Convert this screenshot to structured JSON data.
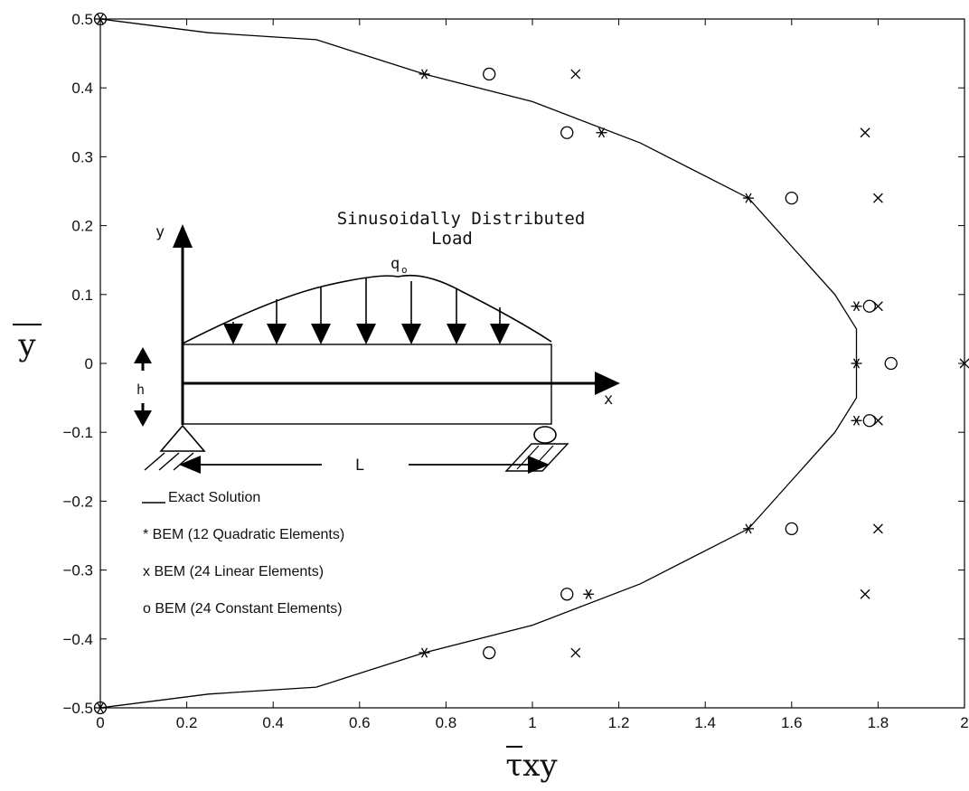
{
  "chart_data": {
    "type": "scatter",
    "xlabel": "τxy",
    "ylabel": "y",
    "xlim": [
      0,
      2
    ],
    "ylim": [
      -0.5,
      0.5
    ],
    "xticks": [
      "0",
      "0.2",
      "0.4",
      "0.6",
      "0.8",
      "1",
      "1.2",
      "1.4",
      "1.6",
      "1.8",
      "2"
    ],
    "yticks": [
      "0.5",
      "0.4",
      "0.3",
      "0.2",
      "0.1",
      "0",
      "−0.1",
      "−0.2",
      "−0.3",
      "−0.4",
      "−0.5"
    ],
    "grid": false,
    "series": [
      {
        "name": "Exact Solution",
        "marker": "line",
        "points": [
          [
            0,
            0.5
          ],
          [
            0.25,
            0.48
          ],
          [
            0.5,
            0.47
          ],
          [
            0.75,
            0.42
          ],
          [
            1.0,
            0.38
          ],
          [
            1.25,
            0.32
          ],
          [
            1.5,
            0.24
          ],
          [
            1.6,
            0.17
          ],
          [
            1.7,
            0.1
          ],
          [
            1.75,
            0.05
          ],
          [
            1.75,
            -0.05
          ],
          [
            1.7,
            -0.1
          ],
          [
            1.6,
            -0.17
          ],
          [
            1.5,
            -0.24
          ],
          [
            1.25,
            -0.32
          ],
          [
            1.0,
            -0.38
          ],
          [
            0.75,
            -0.42
          ],
          [
            0.5,
            -0.47
          ],
          [
            0.25,
            -0.48
          ],
          [
            0,
            -0.5
          ]
        ]
      },
      {
        "name": "BEM (12 Quadratic Elements)",
        "marker": "*",
        "points": [
          [
            0,
            0.5
          ],
          [
            0.75,
            0.42
          ],
          [
            1.16,
            0.335
          ],
          [
            1.5,
            0.24
          ],
          [
            1.75,
            0.083
          ],
          [
            1.75,
            0
          ],
          [
            1.75,
            -0.083
          ],
          [
            1.5,
            -0.24
          ],
          [
            1.13,
            -0.335
          ],
          [
            0.75,
            -0.42
          ],
          [
            0,
            -0.5
          ]
        ]
      },
      {
        "name": "BEM (24 Linear Elements)",
        "marker": "x",
        "points": [
          [
            1.1,
            0.42
          ],
          [
            1.77,
            0.335
          ],
          [
            1.8,
            0.24
          ],
          [
            1.8,
            0.083
          ],
          [
            2.0,
            0
          ],
          [
            1.8,
            -0.083
          ],
          [
            1.8,
            -0.24
          ],
          [
            1.77,
            -0.335
          ],
          [
            1.1,
            -0.42
          ]
        ]
      },
      {
        "name": "BEM (24 Constant Elements)",
        "marker": "o",
        "points": [
          [
            0,
            0.5
          ],
          [
            0.9,
            0.42
          ],
          [
            1.08,
            0.335
          ],
          [
            1.6,
            0.24
          ],
          [
            1.78,
            0.083
          ],
          [
            1.83,
            0
          ],
          [
            1.78,
            -0.083
          ],
          [
            1.6,
            -0.24
          ],
          [
            1.08,
            -0.335
          ],
          [
            0.9,
            -0.42
          ],
          [
            0,
            -0.5
          ]
        ]
      }
    ],
    "legend": {
      "placement": "lower-left",
      "exact": "Exact Solution",
      "quadratic": "* BEM (12 Quadratic Elements)",
      "linear": "x BEM (24 Linear Elements)",
      "constant": "o BEM (24 Constant Elements)"
    },
    "inset": {
      "title_line1": "Sinusoidally Distributed",
      "title_line2": "Load",
      "load_label": "q",
      "load_subscript": "o",
      "axis_y": "y",
      "axis_x": "x",
      "height": "h",
      "length": "L"
    }
  }
}
